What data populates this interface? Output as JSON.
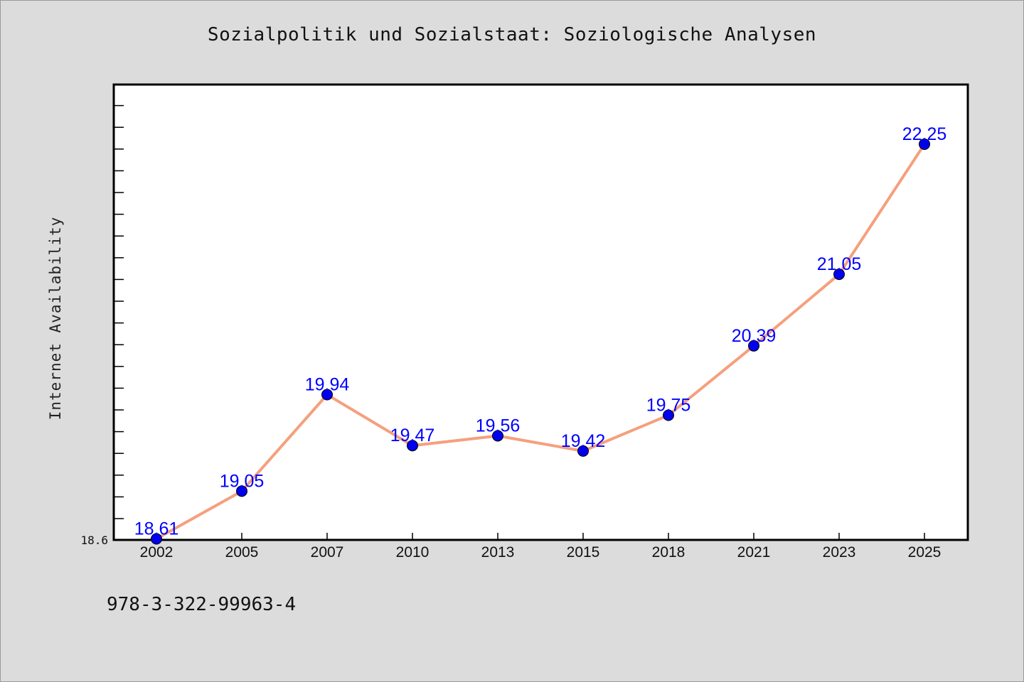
{
  "chart_data": {
    "type": "line",
    "title": "Sozialpolitik und Sozialstaat: Soziologische Analysen",
    "xlabel": "",
    "ylabel": "Internet Availability",
    "categories": [
      "2002",
      "2005",
      "2007",
      "2010",
      "2013",
      "2015",
      "2018",
      "2021",
      "2023",
      "2025"
    ],
    "values": [
      18.61,
      19.05,
      19.94,
      19.47,
      19.56,
      19.42,
      19.75,
      20.39,
      21.05,
      22.25
    ],
    "data_labels": [
      "18.61",
      "19.05",
      "19.94",
      "19.47",
      "19.56",
      "19.42",
      "19.75",
      "20.39",
      "21.05",
      "22.25"
    ],
    "ylim": [
      18.6,
      22.8
    ],
    "y_min_label": "18.6",
    "grid": false,
    "colors": {
      "line": "#f5a07e",
      "marker": "#0000ee",
      "label": "#0000ff",
      "plot_background": "#ffffff",
      "figure_background": "#dcdcdc"
    }
  },
  "footer": {
    "isbn": "978-3-322-99963-4"
  }
}
